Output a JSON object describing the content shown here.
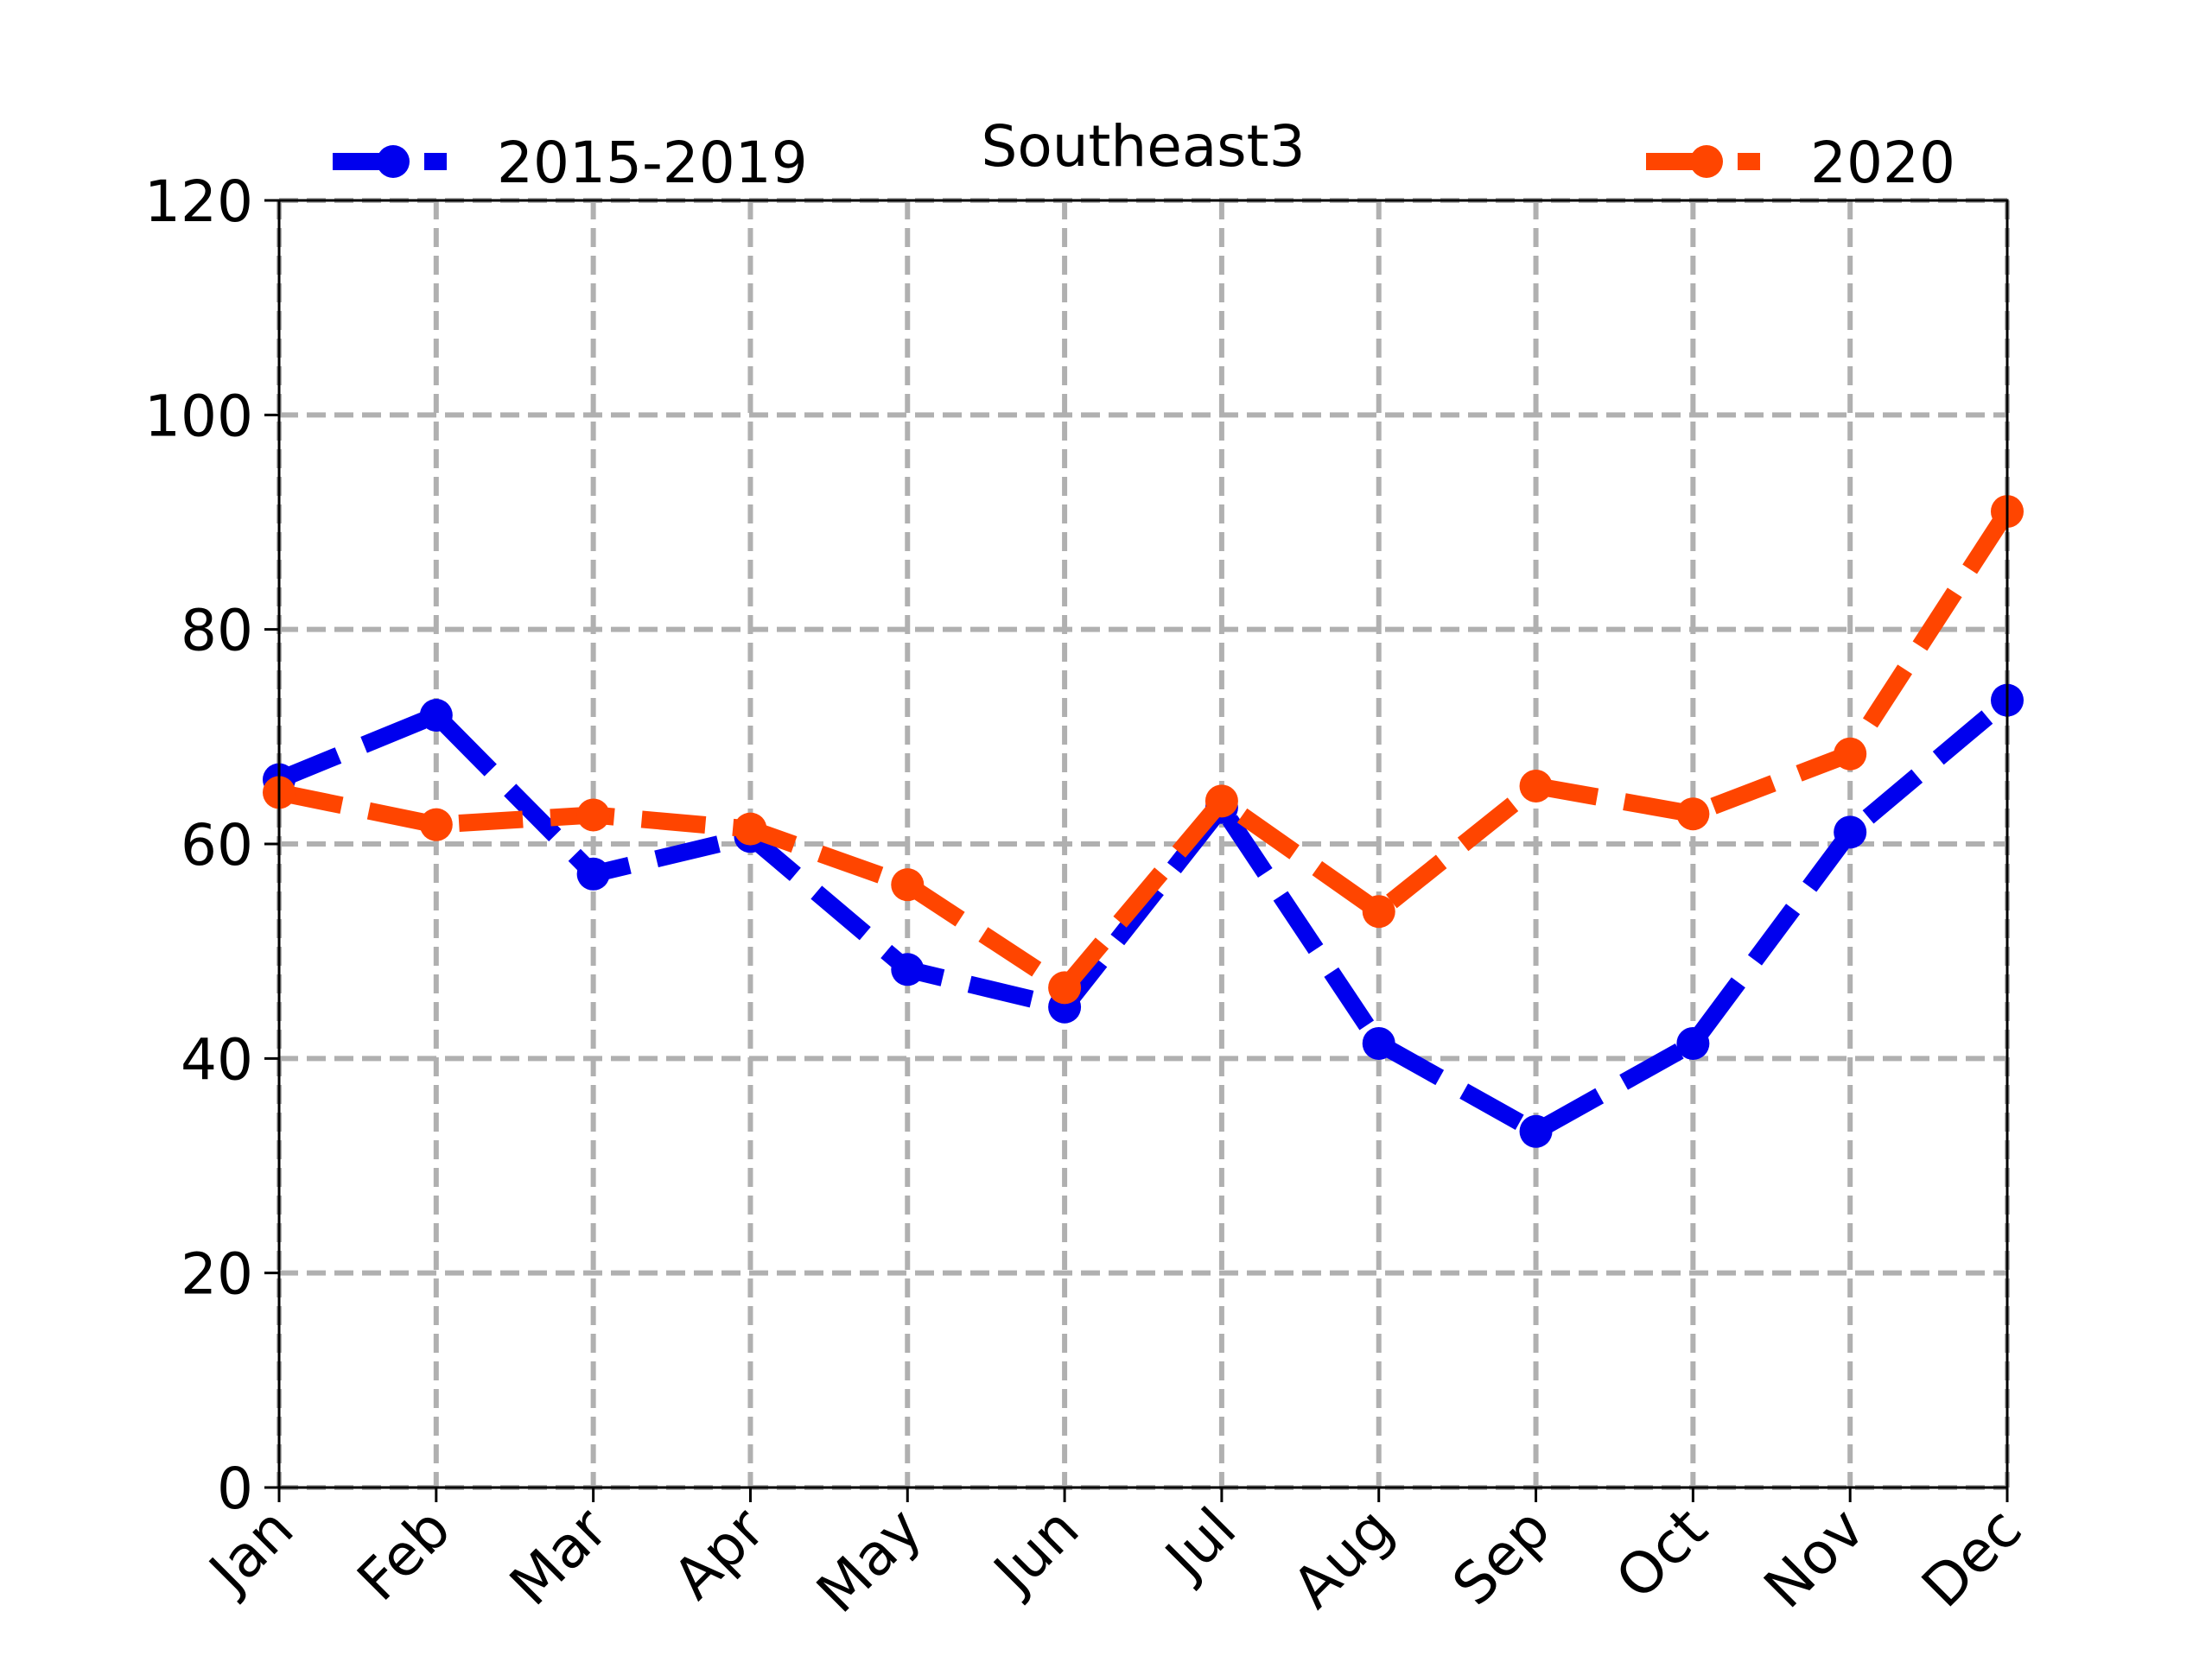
{
  "chart_data": {
    "type": "line",
    "title": "Southeast3",
    "xlabel": "",
    "ylabel": "",
    "categories": [
      "Jan",
      "Feb",
      "Mar",
      "Apr",
      "May",
      "Jun",
      "Jul",
      "Aug",
      "Sep",
      "Oct",
      "Nov",
      "Dec"
    ],
    "ylim": [
      0,
      120
    ],
    "yticks": [
      0,
      20,
      40,
      60,
      80,
      100,
      120
    ],
    "ytick_labels": [
      "0",
      "20",
      "40",
      "60",
      "80",
      "100",
      "120"
    ],
    "grid": true,
    "series": [
      {
        "name": "2015-2019",
        "color": "#0000ee",
        "linestyle": "dashed",
        "marker": "circle",
        "legend_position": "top-left",
        "values": [
          66,
          72,
          57.2,
          60.7,
          48.3,
          44.8,
          63.4,
          41.4,
          33.2,
          41.4,
          61.1,
          73.4
        ]
      },
      {
        "name": "2020",
        "color": "#ff4500",
        "linestyle": "dashed",
        "marker": "circle",
        "legend_position": "top-right",
        "values": [
          64.8,
          61.8,
          62.7,
          61.4,
          56.2,
          46.6,
          64.0,
          53.7,
          65.4,
          62.8,
          68.4,
          91.0
        ]
      }
    ]
  }
}
